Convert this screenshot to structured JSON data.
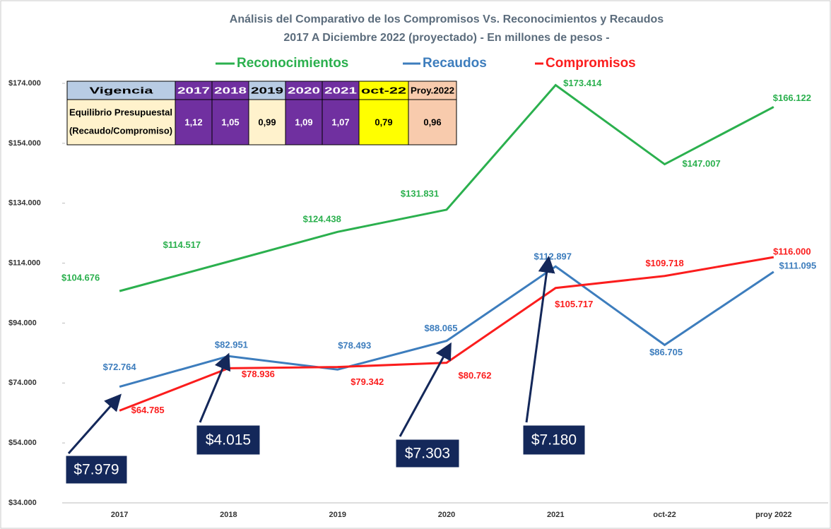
{
  "chart_data": {
    "type": "line",
    "title": "Análisis del Comparativo de los Compromisos Vs. Reconocimientos y Recaudos",
    "subtitle": "2017 A Diciembre 2022 (proyectado) - En millones de pesos -",
    "categories": [
      "2017",
      "2018",
      "2019",
      "2020",
      "2021",
      "oct-22",
      "proy 2022"
    ],
    "series": [
      {
        "name": "Reconocimientos",
        "color": "#2bb04e",
        "values": [
          104676,
          114517,
          124438,
          131831,
          173414,
          147007,
          166122
        ],
        "value_labels": [
          "$104.676",
          "$114.517",
          "$124.438",
          "$131.831",
          "$173.414",
          "$147.007",
          "$166.122"
        ]
      },
      {
        "name": "Recaudos",
        "color": "#3d7dbd",
        "values": [
          72764,
          82951,
          78493,
          88065,
          112897,
          86705,
          111095
        ],
        "value_labels": [
          "$72.764",
          "$82.951",
          "$78.493",
          "$88.065",
          "$112.897",
          "$86.705",
          "$111.095"
        ]
      },
      {
        "name": "Compromisos",
        "color": "#fb1d1d",
        "values": [
          64785,
          78936,
          79342,
          80762,
          105717,
          109718,
          116000
        ],
        "value_labels": [
          "$64.785",
          "$78.936",
          "$79.342",
          "$80.762",
          "$105.717",
          "$109.718",
          "$116.000"
        ]
      }
    ],
    "ylim": [
      34000,
      174000
    ],
    "yticks": [
      {
        "value": 34000,
        "label": "$34.000"
      },
      {
        "value": 54000,
        "label": "$54.000"
      },
      {
        "value": 74000,
        "label": "$74.000"
      },
      {
        "value": 94000,
        "label": "$94.000"
      },
      {
        "value": 114000,
        "label": "$114.000"
      },
      {
        "value": 134000,
        "label": "$134.000"
      },
      {
        "value": 154000,
        "label": "$154.000"
      },
      {
        "value": 174000,
        "label": "$174.000"
      }
    ],
    "annotations": [
      "$7.979",
      "$4.015",
      "$7.303",
      "$7.180"
    ]
  },
  "table": {
    "header": [
      "Vigencia",
      "2017",
      "2018",
      "2019",
      "2020",
      "2021",
      "oct-22",
      "Proy.2022"
    ],
    "row_label": [
      "Equilibrio Presupuestal",
      "(Recaudo/Compromiso)"
    ],
    "values": [
      "1,12",
      "1,05",
      "0,99",
      "1,09",
      "1,07",
      "0,79",
      "0,96"
    ]
  }
}
